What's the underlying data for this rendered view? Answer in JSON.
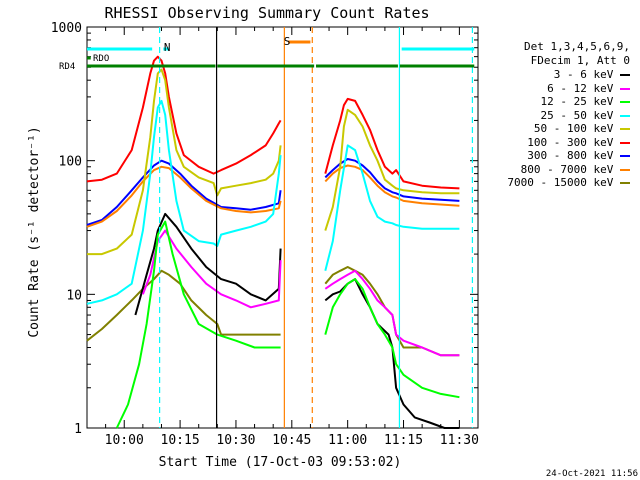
{
  "chart_data": {
    "type": "line",
    "title": "RHESSI Observing Summary Count Rates",
    "xlabel": "Start Time (17-Oct-03 09:53:02)",
    "ylabel": "Count Rate (s⁻¹ detector⁻¹)",
    "y_scale": "log",
    "ylim": [
      1,
      1000
    ],
    "xlim_minutes": [
      -10,
      95
    ],
    "x_ticks": [
      {
        "t": 0,
        "label": "10:00"
      },
      {
        "t": 15,
        "label": "10:15"
      },
      {
        "t": 30,
        "label": "10:30"
      },
      {
        "t": 45,
        "label": "10:45"
      },
      {
        "t": 60,
        "label": "11:00"
      },
      {
        "t": 75,
        "label": "11:15"
      },
      {
        "t": 90,
        "label": "11:30"
      }
    ],
    "y_ticks": [
      {
        "v": 1,
        "label": "1"
      },
      {
        "v": 10,
        "label": "10"
      },
      {
        "v": 100,
        "label": "100"
      },
      {
        "v": 1000,
        "label": "1000"
      }
    ],
    "legend_header": [
      "Det 1,3,4,5,6,9,",
      "FDecim 1, Att 0"
    ],
    "legend_placement": "right",
    "series": [
      {
        "name": "3 - 6 keV",
        "color": "#000000",
        "x": [
          -3,
          3,
          6,
          8,
          9,
          11,
          14,
          18,
          22,
          26,
          30,
          34,
          38,
          41.5,
          42,
          48,
          52,
          54,
          56,
          58,
          60,
          62,
          64,
          66,
          68,
          71,
          72,
          73,
          75,
          78,
          82,
          86,
          90
        ],
        "y": [
          null,
          7,
          14,
          22,
          30,
          40,
          32,
          22,
          16,
          13,
          12,
          10,
          9,
          11,
          22,
          null,
          null,
          9,
          10,
          10.5,
          12,
          13,
          10,
          8,
          6,
          5,
          4,
          2,
          1.5,
          1.2,
          1.1,
          1,
          1
        ]
      },
      {
        "name": "6 - 12 keV",
        "color": "#ff00ff",
        "x": [
          5,
          7,
          9,
          11,
          14,
          18,
          22,
          26,
          30,
          34,
          38,
          41.5,
          42,
          48,
          52,
          54,
          56,
          58,
          60,
          62,
          64,
          66,
          68,
          70,
          72,
          73,
          75,
          80,
          85,
          90
        ],
        "y": [
          10,
          14,
          25,
          30,
          22,
          16,
          12,
          10,
          9,
          8,
          8.5,
          9,
          18,
          null,
          null,
          11,
          12,
          13,
          14,
          15,
          13,
          11,
          9,
          8,
          7,
          5,
          4.5,
          4,
          3.5,
          3.5
        ]
      },
      {
        "name": "12 - 25 keV",
        "color": "#00ff00",
        "x": [
          -2,
          1,
          4,
          6,
          8,
          9,
          11,
          13,
          16,
          20,
          25,
          30,
          35,
          40,
          41.5,
          42,
          48,
          52,
          54,
          56,
          58,
          60,
          62,
          64,
          66,
          68,
          70,
          72,
          73,
          75,
          80,
          85,
          90
        ],
        "y": [
          1,
          1.5,
          3,
          6,
          15,
          28,
          35,
          20,
          10,
          6,
          5,
          4.5,
          4,
          4,
          4,
          4,
          null,
          null,
          5,
          8,
          10,
          12,
          13,
          11,
          8,
          6,
          5,
          4,
          3,
          2.5,
          2,
          1.8,
          1.7
        ]
      },
      {
        "name": "25 - 50 keV",
        "color": "#00ffff",
        "x": [
          -10,
          -6,
          -2,
          2,
          5,
          7,
          8,
          9,
          10,
          11,
          12,
          14,
          16,
          20,
          24,
          25,
          26,
          30,
          34,
          38,
          40,
          41.5,
          42,
          48,
          52,
          54,
          56,
          58,
          60,
          62,
          64,
          66,
          68,
          70,
          72,
          73,
          75,
          80,
          85,
          90
        ],
        "y": [
          8.5,
          9,
          10,
          12,
          30,
          80,
          150,
          250,
          280,
          220,
          120,
          50,
          30,
          25,
          24,
          23,
          28,
          30,
          32,
          35,
          40,
          80,
          110,
          null,
          null,
          15,
          25,
          60,
          130,
          120,
          80,
          50,
          38,
          35,
          34,
          33,
          32,
          31,
          31,
          31
        ]
      },
      {
        "name": "50 - 100 keV",
        "color": "#c8c800",
        "x": [
          -10,
          -6,
          -2,
          2,
          5,
          7,
          8,
          9,
          10,
          11,
          12,
          14,
          16,
          20,
          24,
          25,
          26,
          30,
          34,
          38,
          40,
          41.5,
          42,
          48,
          52,
          54,
          56,
          58,
          59,
          60,
          62,
          64,
          66,
          68,
          70,
          72,
          73,
          75,
          80,
          85,
          90
        ],
        "y": [
          20,
          20,
          22,
          28,
          60,
          150,
          280,
          450,
          480,
          400,
          250,
          120,
          90,
          75,
          68,
          55,
          62,
          65,
          68,
          72,
          80,
          100,
          130,
          null,
          null,
          30,
          45,
          90,
          180,
          240,
          220,
          180,
          130,
          100,
          72,
          65,
          62,
          60,
          58,
          57,
          57
        ]
      },
      {
        "name": "100 - 300 keV",
        "color": "#ff0000",
        "x": [
          -10,
          -6,
          -2,
          2,
          5,
          7,
          8,
          9,
          10,
          11,
          12,
          14,
          16,
          20,
          24,
          26,
          30,
          34,
          38,
          40,
          41.5,
          42,
          48,
          52,
          54,
          56,
          58,
          59,
          60,
          62,
          64,
          66,
          68,
          70,
          72,
          73,
          75,
          80,
          85,
          90
        ],
        "y": [
          70,
          72,
          80,
          120,
          250,
          450,
          560,
          600,
          560,
          450,
          300,
          160,
          110,
          90,
          80,
          85,
          95,
          110,
          130,
          160,
          190,
          200,
          null,
          null,
          80,
          130,
          200,
          260,
          290,
          280,
          220,
          170,
          120,
          90,
          80,
          85,
          70,
          65,
          63,
          62
        ]
      },
      {
        "name": "300 - 800 keV",
        "color": "#0000ff",
        "x": [
          -10,
          -6,
          -2,
          2,
          5,
          8,
          10,
          12,
          15,
          18,
          22,
          26,
          30,
          34,
          38,
          41.5,
          42,
          48,
          52,
          54,
          56,
          58,
          60,
          62,
          64,
          66,
          68,
          70,
          72,
          73,
          75,
          80,
          85,
          90
        ],
        "y": [
          33,
          36,
          45,
          60,
          75,
          92,
          100,
          95,
          80,
          65,
          52,
          45,
          44,
          43,
          45,
          48,
          60,
          null,
          null,
          75,
          85,
          95,
          103,
          100,
          92,
          82,
          70,
          62,
          58,
          57,
          54,
          52,
          51,
          50
        ]
      },
      {
        "name": "800 - 7000 keV",
        "color": "#ff8000",
        "x": [
          -10,
          -6,
          -2,
          2,
          5,
          8,
          10,
          12,
          15,
          18,
          22,
          26,
          30,
          34,
          38,
          41.5,
          42,
          48,
          52,
          54,
          56,
          58,
          60,
          62,
          64,
          66,
          68,
          70,
          72,
          73,
          75,
          80,
          85,
          90
        ],
        "y": [
          32,
          35,
          42,
          55,
          70,
          85,
          90,
          88,
          75,
          62,
          50,
          44,
          42,
          41,
          42,
          44,
          50,
          null,
          null,
          70,
          80,
          88,
          92,
          90,
          85,
          75,
          65,
          58,
          54,
          53,
          50,
          48,
          47,
          46
        ]
      },
      {
        "name": "7000 - 15000 keV",
        "color": "#808000",
        "x": [
          -10,
          -6,
          -2,
          2,
          5,
          8,
          10,
          12,
          15,
          18,
          22,
          25,
          26,
          30,
          34,
          38,
          41.5,
          42,
          48,
          52,
          54,
          56,
          58,
          60,
          62,
          64,
          66,
          68,
          70,
          72,
          73,
          75,
          80,
          85,
          90
        ],
        "y": [
          4.5,
          5.5,
          7,
          9,
          11,
          13,
          15,
          14,
          12,
          9,
          7,
          6,
          5,
          5,
          5,
          5,
          5,
          5,
          null,
          null,
          12,
          14,
          15,
          16,
          15,
          14,
          12,
          10,
          8,
          7,
          5,
          4,
          4,
          3.5,
          3.5
        ]
      }
    ],
    "annotations": [
      {
        "label": "N",
        "t": 8.5
      },
      {
        "label": "S",
        "t": 45
      },
      {
        "label": "RDO"
      },
      {
        "label": "RD4"
      }
    ],
    "flag_bars": {
      "cyan": [
        [
          -10,
          7.5
        ],
        [
          10.5,
          12
        ],
        [
          74.5,
          94
        ]
      ],
      "orange": [
        [
          44,
          50
        ]
      ],
      "rdo": [
        [
          -10,
          -9
        ]
      ],
      "rd4": [
        [
          -10,
          24.5
        ],
        [
          25,
          51
        ],
        [
          51.5,
          73.5
        ],
        [
          74,
          94
        ]
      ]
    },
    "vlines": [
      {
        "t": 9.5,
        "color": "#00ffff",
        "style": "dashed"
      },
      {
        "t": 24.8,
        "color": "#000000",
        "style": "solid"
      },
      {
        "t": 43.0,
        "color": "#ff8000",
        "style": "solid"
      },
      {
        "t": 50.5,
        "color": "#ff8000",
        "style": "dashed"
      },
      {
        "t": 73.9,
        "color": "#00ffff",
        "style": "solid"
      },
      {
        "t": 93.5,
        "color": "#00ffff",
        "style": "dashed"
      }
    ],
    "grid": false
  },
  "timestamp": "24-Oct-2021 11:56"
}
